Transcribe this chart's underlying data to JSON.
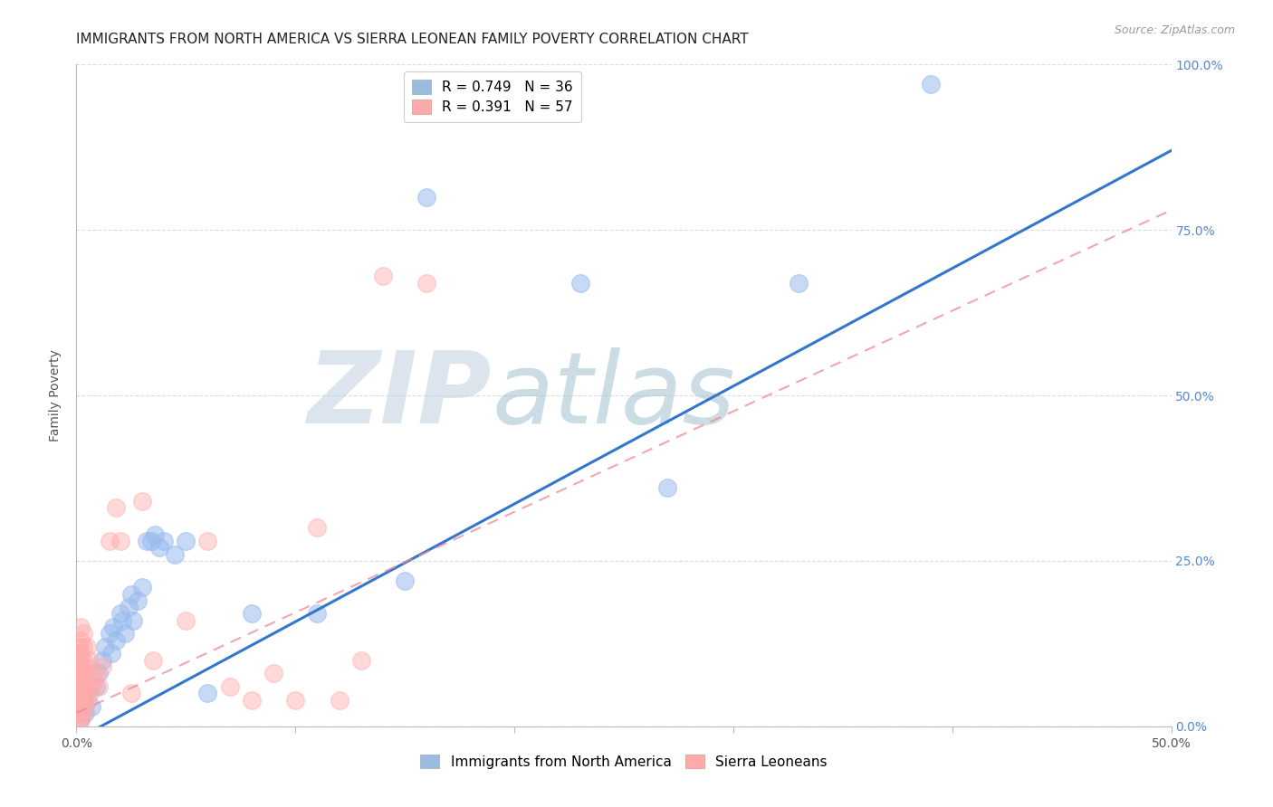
{
  "title": "IMMIGRANTS FROM NORTH AMERICA VS SIERRA LEONEAN FAMILY POVERTY CORRELATION CHART",
  "source": "Source: ZipAtlas.com",
  "ylabel": "Family Poverty",
  "y_ticks": [
    0.0,
    0.25,
    0.5,
    0.75,
    1.0
  ],
  "y_tick_labels": [
    "0.0%",
    "25.0%",
    "50.0%",
    "75.0%",
    "100.0%"
  ],
  "x_ticks": [
    0.0,
    0.1,
    0.2,
    0.3,
    0.4,
    0.5
  ],
  "legend_entry1": "R = 0.749   N = 36",
  "legend_entry2": "R = 0.391   N = 57",
  "legend_color1": "#99BBDD",
  "legend_color2": "#FFAAAA",
  "watermark_zip": "ZIP",
  "watermark_atlas": "atlas",
  "watermark_color_zip": "#BBCCDD",
  "watermark_color_atlas": "#99BBCC",
  "blue_color": "#99BBEE",
  "pink_color": "#FFAAAA",
  "blue_line_color": "#3377CC",
  "pink_line_color": "#EE8899",
  "blue_points": [
    [
      0.002,
      0.01
    ],
    [
      0.004,
      0.02
    ],
    [
      0.005,
      0.05
    ],
    [
      0.007,
      0.03
    ],
    [
      0.009,
      0.06
    ],
    [
      0.01,
      0.08
    ],
    [
      0.012,
      0.1
    ],
    [
      0.013,
      0.12
    ],
    [
      0.015,
      0.14
    ],
    [
      0.016,
      0.11
    ],
    [
      0.017,
      0.15
    ],
    [
      0.018,
      0.13
    ],
    [
      0.02,
      0.17
    ],
    [
      0.021,
      0.16
    ],
    [
      0.022,
      0.14
    ],
    [
      0.024,
      0.18
    ],
    [
      0.025,
      0.2
    ],
    [
      0.026,
      0.16
    ],
    [
      0.028,
      0.19
    ],
    [
      0.03,
      0.21
    ],
    [
      0.032,
      0.28
    ],
    [
      0.034,
      0.28
    ],
    [
      0.036,
      0.29
    ],
    [
      0.038,
      0.27
    ],
    [
      0.04,
      0.28
    ],
    [
      0.045,
      0.26
    ],
    [
      0.05,
      0.28
    ],
    [
      0.06,
      0.05
    ],
    [
      0.08,
      0.17
    ],
    [
      0.11,
      0.17
    ],
    [
      0.15,
      0.22
    ],
    [
      0.16,
      0.8
    ],
    [
      0.23,
      0.67
    ],
    [
      0.27,
      0.36
    ],
    [
      0.33,
      0.67
    ],
    [
      0.39,
      0.97
    ]
  ],
  "pink_points": [
    [
      0.001,
      0.01
    ],
    [
      0.001,
      0.02
    ],
    [
      0.001,
      0.03
    ],
    [
      0.001,
      0.04
    ],
    [
      0.001,
      0.05
    ],
    [
      0.001,
      0.06
    ],
    [
      0.001,
      0.07
    ],
    [
      0.001,
      0.08
    ],
    [
      0.001,
      0.09
    ],
    [
      0.001,
      0.1
    ],
    [
      0.001,
      0.11
    ],
    [
      0.001,
      0.12
    ],
    [
      0.002,
      0.01
    ],
    [
      0.002,
      0.03
    ],
    [
      0.002,
      0.05
    ],
    [
      0.002,
      0.07
    ],
    [
      0.002,
      0.09
    ],
    [
      0.002,
      0.11
    ],
    [
      0.002,
      0.13
    ],
    [
      0.002,
      0.15
    ],
    [
      0.003,
      0.02
    ],
    [
      0.003,
      0.04
    ],
    [
      0.003,
      0.06
    ],
    [
      0.003,
      0.08
    ],
    [
      0.003,
      0.1
    ],
    [
      0.003,
      0.12
    ],
    [
      0.003,
      0.14
    ],
    [
      0.004,
      0.03
    ],
    [
      0.004,
      0.06
    ],
    [
      0.004,
      0.09
    ],
    [
      0.005,
      0.04
    ],
    [
      0.005,
      0.08
    ],
    [
      0.005,
      0.12
    ],
    [
      0.006,
      0.05
    ],
    [
      0.006,
      0.1
    ],
    [
      0.007,
      0.06
    ],
    [
      0.008,
      0.07
    ],
    [
      0.009,
      0.08
    ],
    [
      0.01,
      0.06
    ],
    [
      0.012,
      0.09
    ],
    [
      0.015,
      0.28
    ],
    [
      0.018,
      0.33
    ],
    [
      0.02,
      0.28
    ],
    [
      0.025,
      0.05
    ],
    [
      0.03,
      0.34
    ],
    [
      0.035,
      0.1
    ],
    [
      0.05,
      0.16
    ],
    [
      0.06,
      0.28
    ],
    [
      0.07,
      0.06
    ],
    [
      0.08,
      0.04
    ],
    [
      0.09,
      0.08
    ],
    [
      0.1,
      0.04
    ],
    [
      0.11,
      0.3
    ],
    [
      0.12,
      0.04
    ],
    [
      0.13,
      0.1
    ],
    [
      0.14,
      0.68
    ],
    [
      0.16,
      0.67
    ]
  ],
  "blue_line": [
    [
      0.0,
      -0.02
    ],
    [
      0.5,
      0.87
    ]
  ],
  "pink_line": [
    [
      0.0,
      0.02
    ],
    [
      0.5,
      0.78
    ]
  ],
  "background_color": "#FFFFFF",
  "grid_color": "#DDDDDD",
  "title_fontsize": 11,
  "axis_label_fontsize": 10,
  "tick_fontsize": 10,
  "right_tick_color": "#5588CC"
}
